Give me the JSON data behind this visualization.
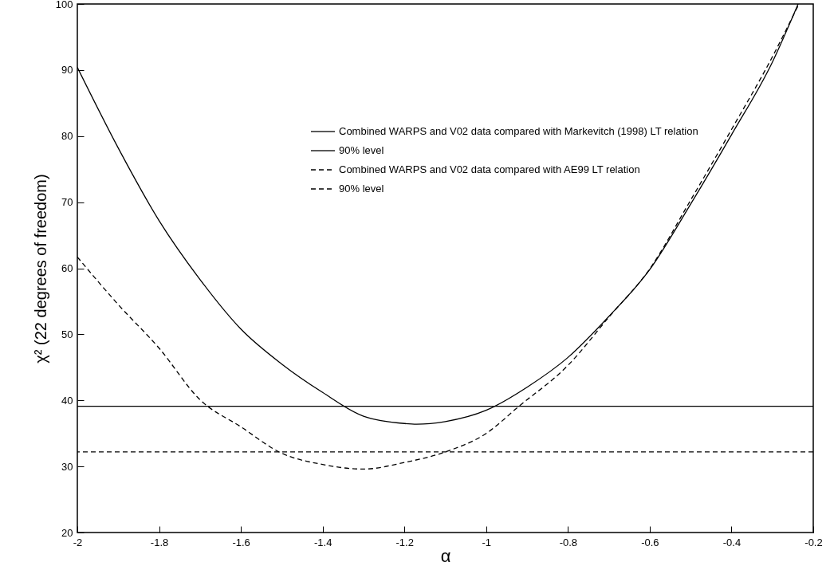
{
  "chart_data": {
    "type": "line",
    "xlabel": "α",
    "ylabel": "χ² (22 degrees of freedom)",
    "xlim": [
      -2,
      -0.2
    ],
    "xticks": [
      -2,
      -1.8,
      -1.6,
      -1.4,
      -1.2,
      -1,
      -0.8,
      -0.6,
      -0.4,
      -0.2
    ],
    "ylim": [
      20,
      100
    ],
    "yticks": [
      20,
      30,
      40,
      50,
      60,
      70,
      80,
      90,
      100
    ],
    "grid": false,
    "legend": "top right",
    "marker": "none",
    "series": [
      {
        "name": "Combined WARPS and V02 data compared with Markevitch (1998) LT relation",
        "color": "#000000",
        "line_style": "solid",
        "x": [
          -2,
          -1.9,
          -1.8,
          -1.7,
          -1.6,
          -1.5,
          -1.4,
          -1.3,
          -1.2,
          -1.17,
          -1.1,
          -1.0,
          -0.9,
          -0.8,
          -0.7,
          -0.6,
          -0.5,
          -0.4,
          -0.3,
          -0.237
        ],
        "values": [
          90.4,
          78.2,
          67.2,
          58.3,
          50.8,
          45.5,
          41.2,
          37.6,
          36.5,
          36.4,
          36.8,
          38.5,
          42.0,
          46.5,
          52.7,
          59.8,
          69.7,
          80.2,
          91.2,
          100
        ]
      },
      {
        "name": "Combined WARPS and V02 data compared with AE99 LT relation",
        "color": "#000000",
        "line_style": "dashed",
        "x": [
          -2,
          -1.9,
          -1.8,
          -1.7,
          -1.6,
          -1.5,
          -1.4,
          -1.3,
          -1.2,
          -1.1,
          -1.0,
          -0.92,
          -0.8,
          -0.7,
          -0.6,
          -0.5,
          -0.4,
          -0.3,
          -0.235
        ],
        "values": [
          61.7,
          54.5,
          47.9,
          40.1,
          36.0,
          32.0,
          30.3,
          29.6,
          30.6,
          32.2,
          35.0,
          39.1,
          45.3,
          52.6,
          59.9,
          70.3,
          81.0,
          92.0,
          100
        ]
      }
    ],
    "ref_lines": [
      {
        "axis": "y",
        "value": 39.1,
        "label": "90% level",
        "color": "#000000",
        "line_style": "solid"
      },
      {
        "axis": "y",
        "value": 32.2,
        "label": "90% level",
        "color": "#000000",
        "line_style": "dashed"
      }
    ]
  }
}
